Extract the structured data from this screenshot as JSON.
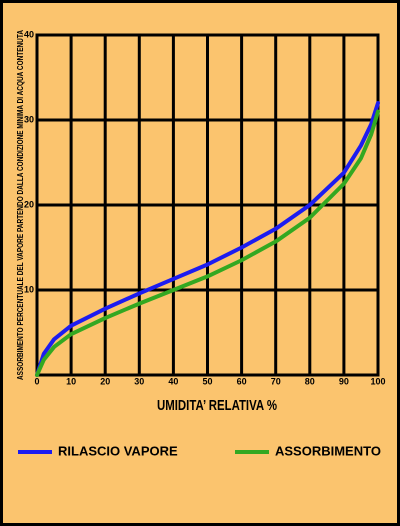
{
  "chart_data": {
    "type": "line",
    "y_label": "ASSORBIMENTO PERCENTUALE DEL VAPORE PARTENDO DALLA CONDIZIONE MINIMA DI ACQUA CONTENUTA",
    "x_label": "UMIDITA’ RELATIVA %",
    "x": [
      0,
      2,
      5,
      10,
      20,
      30,
      40,
      50,
      60,
      70,
      80,
      90,
      95,
      98,
      100
    ],
    "series": [
      {
        "name": "RILASCIO VAPORE",
        "color": "#1c1cf0",
        "values": [
          0,
          2.5,
          4.2,
          5.8,
          7.8,
          9.6,
          11.3,
          13,
          15,
          17.2,
          20,
          23.8,
          27,
          29.5,
          32
        ]
      },
      {
        "name": "ASSORBIMENTO",
        "color": "#33a821",
        "values": [
          0,
          1.8,
          3.3,
          4.8,
          6.7,
          8.4,
          10,
          11.6,
          13.5,
          15.7,
          18.5,
          22.5,
          25.5,
          28.3,
          31
        ]
      }
    ],
    "xlim": [
      0,
      100
    ],
    "xticks": [
      0,
      10,
      20,
      30,
      40,
      50,
      60,
      70,
      80,
      90,
      100
    ],
    "ylim": [
      0,
      40
    ],
    "yticks": [
      10,
      20,
      30,
      40
    ],
    "grid": true
  }
}
